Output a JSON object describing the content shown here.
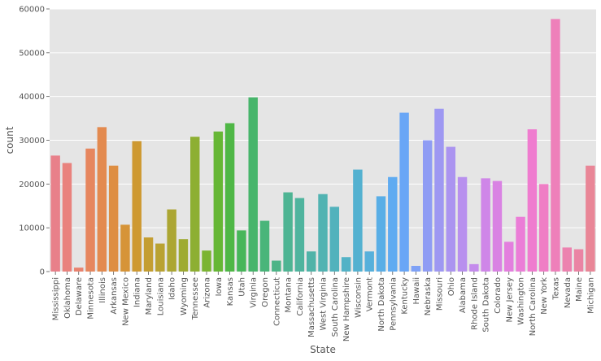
{
  "chart_data": {
    "type": "bar",
    "xlabel": "State",
    "ylabel": "count",
    "ylim": [
      0,
      60000
    ],
    "yticks": [
      0,
      10000,
      20000,
      30000,
      40000,
      50000,
      60000
    ],
    "grid": true,
    "categories": [
      "Mississippi",
      "Oklahoma",
      "Delaware",
      "Minnesota",
      "Illinois",
      "Arkansas",
      "New Mexico",
      "Indiana",
      "Maryland",
      "Louisiana",
      "Idaho",
      "Wyoming",
      "Tennessee",
      "Arizona",
      "Iowa",
      "Kansas",
      "Utah",
      "Virginia",
      "Oregon",
      "Connecticut",
      "Montana",
      "California",
      "Massachusetts",
      "West Virginia",
      "South Carolina",
      "New Hampshire",
      "Wisconsin",
      "Vermont",
      "North Dakota",
      "Pennsylvania",
      "Kentucky",
      "Hawaii",
      "Nebraska",
      "Missouri",
      "Ohio",
      "Alabama",
      "Rhode Island",
      "South Dakota",
      "Colorado",
      "New Jersey",
      "Washington",
      "North Carolina",
      "New York",
      "Texas",
      "Nevada",
      "Maine",
      "Michigan"
    ],
    "values": [
      26500,
      24800,
      900,
      28100,
      33000,
      24200,
      10700,
      29800,
      7800,
      6400,
      14200,
      7400,
      30800,
      4800,
      32000,
      33900,
      9400,
      39800,
      11600,
      2500,
      18100,
      16800,
      4600,
      17700,
      14800,
      3300,
      23300,
      4600,
      17200,
      21600,
      36300,
      1300,
      30000,
      37200,
      28500,
      21600,
      1700,
      21300,
      20700,
      6800,
      12500,
      32500,
      20000,
      57700,
      5500,
      5100,
      24200
    ],
    "colors": [
      "#e8808a",
      "#e9827d",
      "#e8836f",
      "#e6865e",
      "#e38a4f",
      "#de8e42",
      "#d69438",
      "#ce9931",
      "#c49e32",
      "#b9a232",
      "#aca633",
      "#9eab32",
      "#8daf32",
      "#7bb432",
      "#66b735",
      "#4fb746",
      "#47b65a",
      "#47b56b",
      "#49b57a",
      "#4cb487",
      "#4eb493",
      "#4fb49e",
      "#50b3a8",
      "#51b3b2",
      "#52b2bc",
      "#53b2c6",
      "#54b1d0",
      "#56b0db",
      "#59aee6",
      "#5fabf1",
      "#69a6f6",
      "#7ea1f6",
      "#8f9cf4",
      "#9e98f2",
      "#ab94f0",
      "#b890ee",
      "#c48bec",
      "#cf86e8",
      "#d982e3",
      "#e37fde",
      "#eb7dd7",
      "#ef7ccf",
      "#ef7ec5",
      "#ee80ba",
      "#ec82af",
      "#ea84a4",
      "#e98697"
    ]
  }
}
